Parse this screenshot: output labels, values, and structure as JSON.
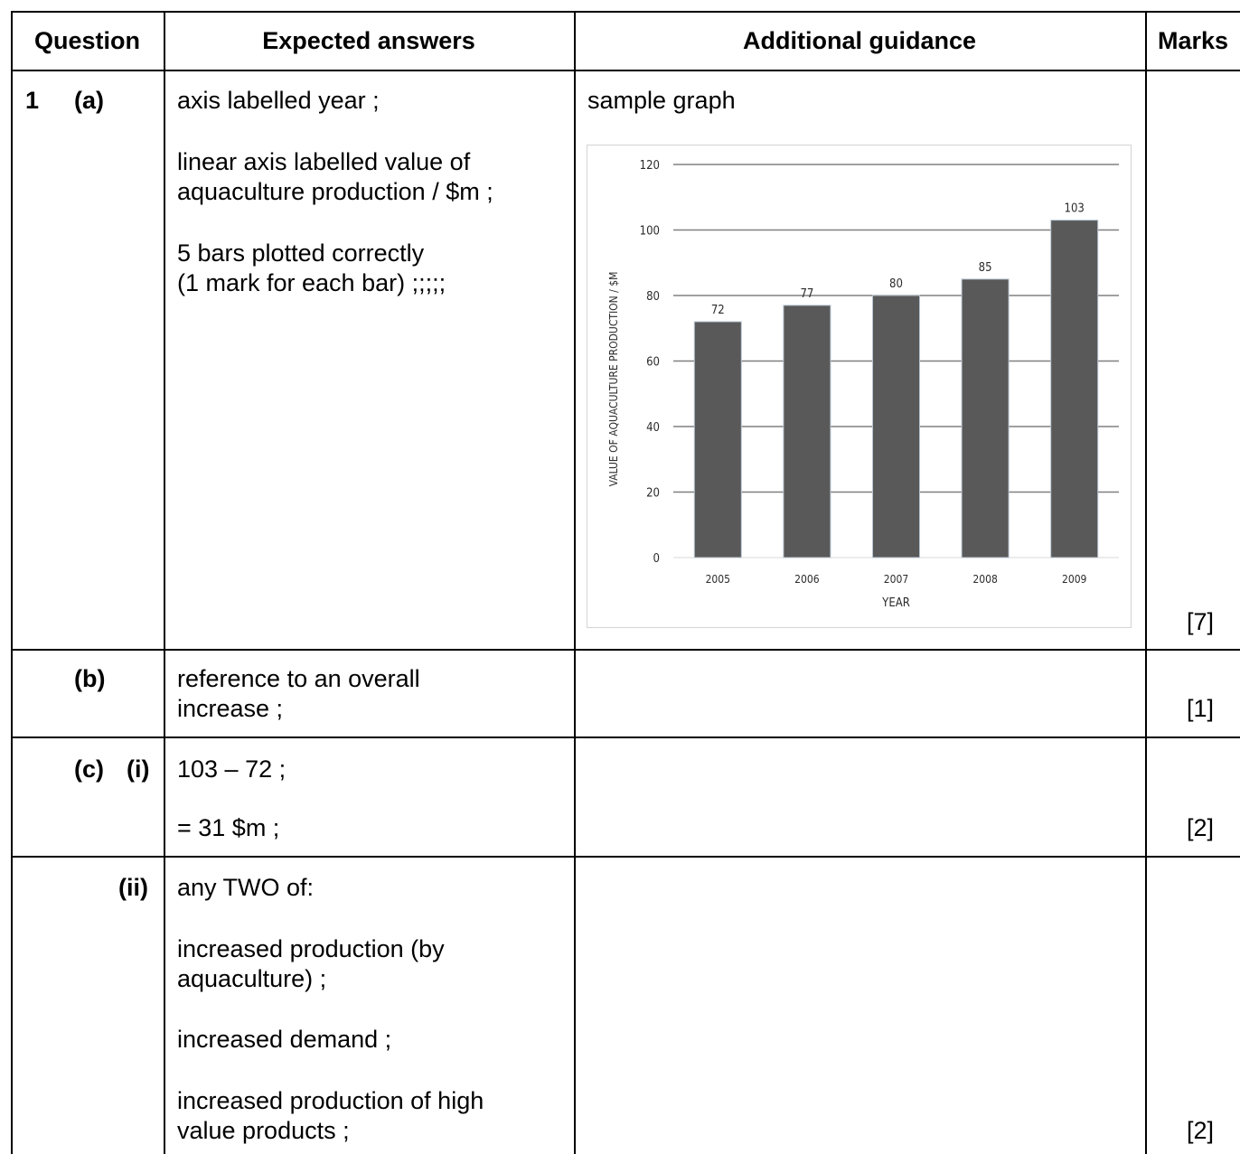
{
  "header": {
    "question": "Question",
    "expected": "Expected answers",
    "guidance": "Additional guidance",
    "marks": "Marks"
  },
  "rows": {
    "a": {
      "number": "1",
      "part": "(a)",
      "answers": [
        "axis labelled year ;",
        "linear axis labelled value of",
        "aquaculture production / $m ;",
        "5 bars plotted correctly",
        "(1 mark for each bar) ;;;;;"
      ],
      "guidance": "sample graph",
      "marks": "[7]"
    },
    "b": {
      "part": "(b)",
      "answers": [
        "reference to an overall",
        "increase ;"
      ],
      "marks": "[1]"
    },
    "ci": {
      "part": "(c)",
      "subpart": "(i)",
      "answers": [
        "103 – 72 ;",
        "= 31 $m ;"
      ],
      "marks": "[2]"
    },
    "cii": {
      "subpart": "(ii)",
      "answers": [
        "any TWO of:",
        "increased production (by",
        "aquaculture) ;",
        "increased demand ;",
        "increased production of high",
        "value products ;"
      ],
      "marks": "[2]"
    }
  },
  "chart_data": {
    "type": "bar",
    "categories": [
      "2005",
      "2006",
      "2007",
      "2008",
      "2009"
    ],
    "values": [
      72,
      77,
      80,
      85,
      103
    ],
    "data_labels": [
      "72",
      "77",
      "80",
      "85",
      "103"
    ],
    "xlabel": "YEAR",
    "ylabel": "VALUE OF AQUACULTURE PRODUCTION / $M",
    "ylim": [
      0,
      120
    ],
    "yticks": [
      "0",
      "20",
      "40",
      "60",
      "80",
      "100",
      "120"
    ],
    "grid": true,
    "bar_color": "#595959",
    "grid_color": "#808080"
  }
}
